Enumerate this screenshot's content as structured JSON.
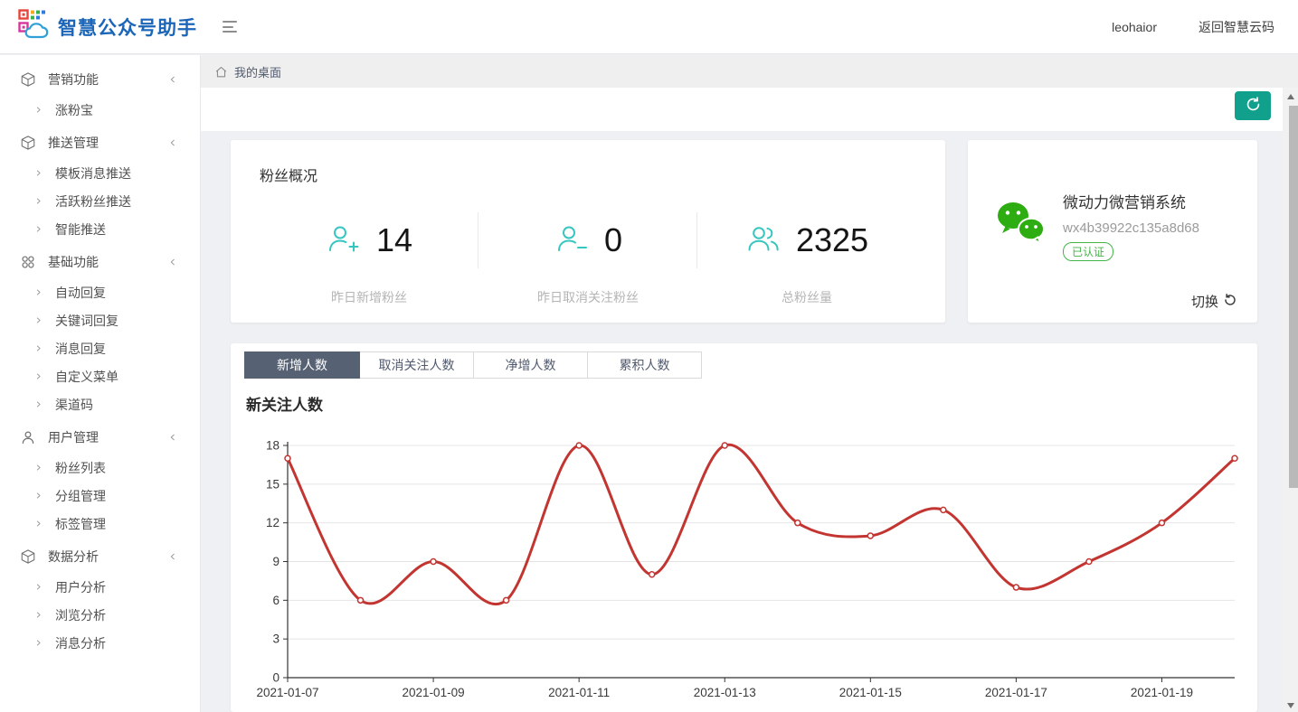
{
  "header": {
    "app_title": "智慧公众号助手",
    "logo_icon": "qr-cloud-logo-icon",
    "menu_icon": "hamburger-icon",
    "username": "leohaior",
    "back_label": "返回智慧云码"
  },
  "breadcrumb": {
    "home_icon": "home-icon",
    "label": "我的桌面"
  },
  "sidebar": {
    "sections": [
      {
        "icon": "cube-icon",
        "label": "营销功能",
        "children": [
          "涨粉宝"
        ]
      },
      {
        "icon": "cube-icon",
        "label": "推送管理",
        "children": [
          "模板消息推送",
          "活跃粉丝推送",
          "智能推送"
        ]
      },
      {
        "icon": "category-icon",
        "label": "基础功能",
        "children": [
          "自动回复",
          "关键词回复",
          "消息回复",
          "自定义菜单",
          "渠道码"
        ]
      },
      {
        "icon": "user-icon",
        "label": "用户管理",
        "children": [
          "粉丝列表",
          "分组管理",
          "标签管理"
        ]
      },
      {
        "icon": "cube-icon",
        "label": "数据分析",
        "children": [
          "用户分析",
          "浏览分析",
          "消息分析"
        ]
      }
    ]
  },
  "toolbar": {
    "refresh_icon": "refresh-icon"
  },
  "overview": {
    "title": "粉丝概况",
    "stats": [
      {
        "icon": "user-plus-icon",
        "value": "14",
        "label": "昨日新增粉丝"
      },
      {
        "icon": "user-minus-icon",
        "value": "0",
        "label": "昨日取消关注粉丝"
      },
      {
        "icon": "users-icon",
        "value": "2325",
        "label": "总粉丝量"
      }
    ]
  },
  "account": {
    "icon": "wechat-icon",
    "name": "微动力微营销系统",
    "app_id": "wx4b39922c135a8d68",
    "verified_badge": "已认证",
    "switch_label": "切换",
    "switch_icon": "undo-icon"
  },
  "tabs": {
    "items": [
      "新增人数",
      "取消关注人数",
      "净增人数",
      "累积人数"
    ],
    "active_index": 0
  },
  "chart_data": {
    "type": "line",
    "title": "新关注人数",
    "x": [
      "2021-01-07",
      "2021-01-08",
      "2021-01-09",
      "2021-01-10",
      "2021-01-11",
      "2021-01-12",
      "2021-01-13",
      "2021-01-14",
      "2021-01-15",
      "2021-01-16",
      "2021-01-17",
      "2021-01-18",
      "2021-01-19",
      "2021-01-20"
    ],
    "values": [
      17,
      6,
      9,
      6,
      18,
      8,
      18,
      12,
      11,
      13,
      7,
      9,
      12,
      17
    ],
    "x_label_every": 2,
    "ylim": [
      0,
      18
    ],
    "ytick_step": 3,
    "smooth": true,
    "grid": true,
    "line_color": "#c23531",
    "marker": "open-circle",
    "legend": "none"
  },
  "colors": {
    "accent_teal": "#36c6c0",
    "refresh_button_green": "#10a08b",
    "wechat_green": "#2ead13",
    "badge_green": "#44b549",
    "active_tab_slate": "#566173",
    "logo_blue": "#1b66b8",
    "line_red": "#c23531"
  }
}
